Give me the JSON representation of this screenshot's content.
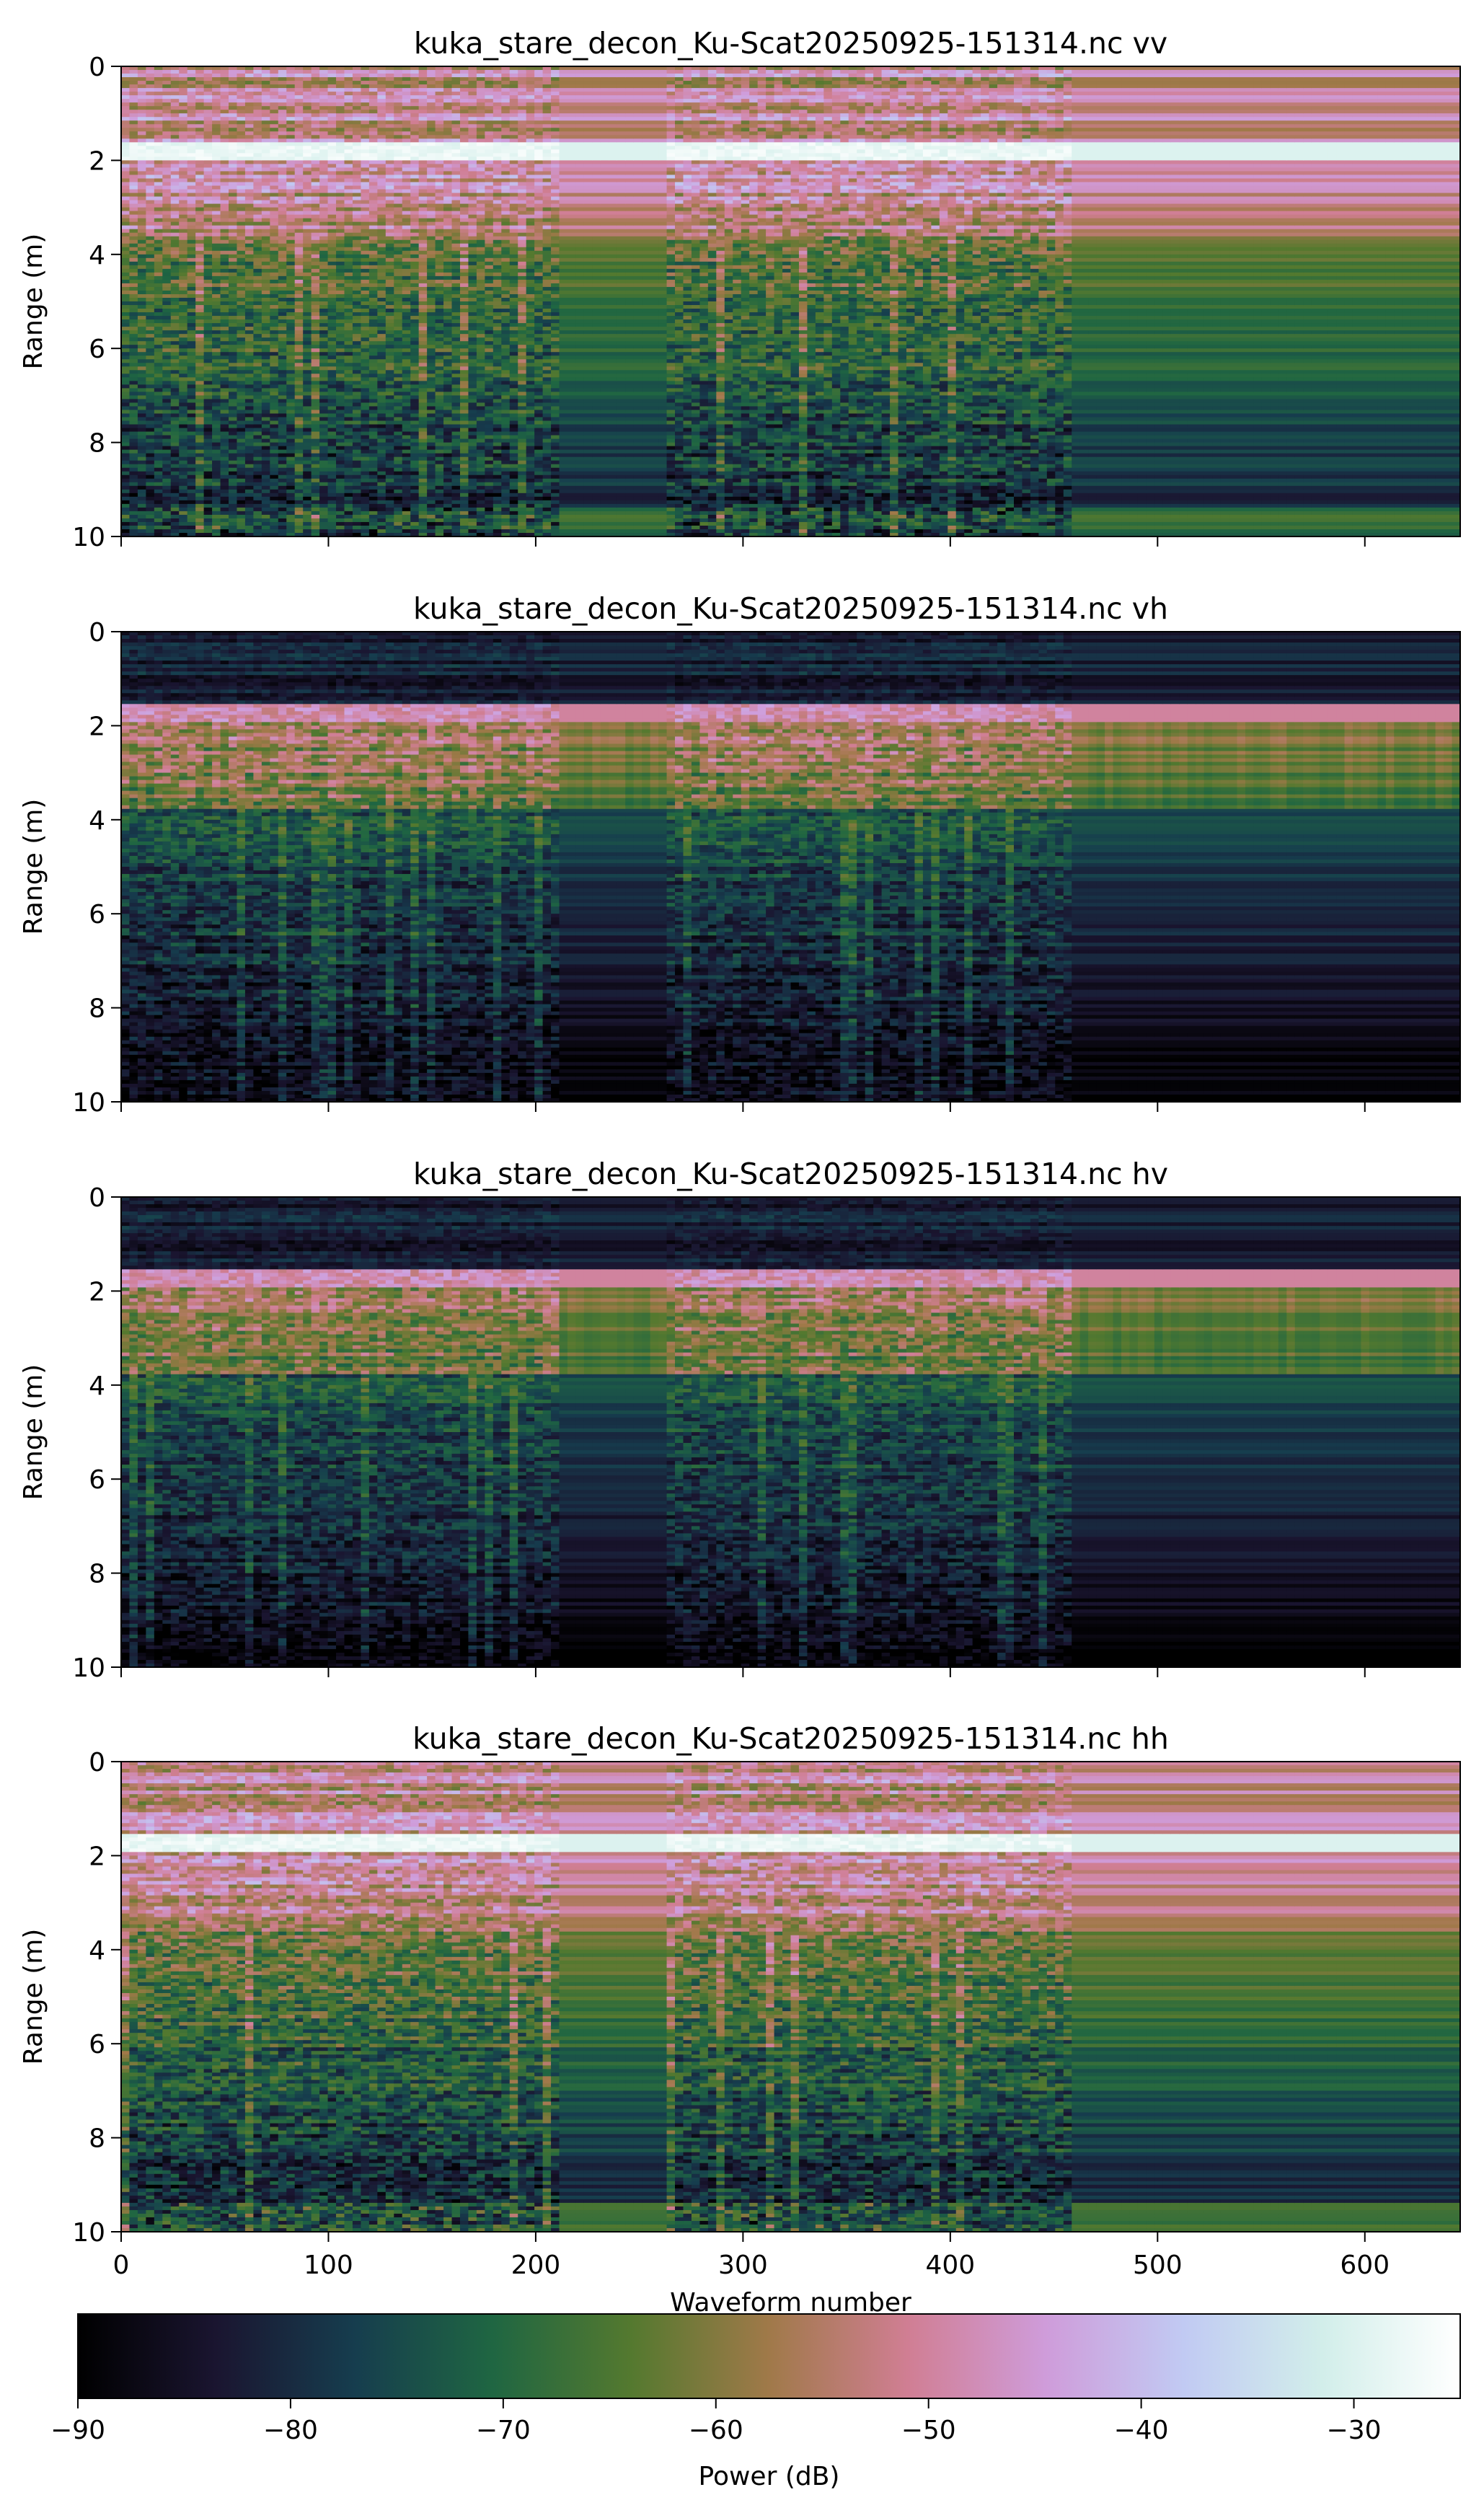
{
  "chart_data": [
    {
      "type": "heatmap",
      "title": "kuka_stare_decon_Ku-Scat20250925-151314.nc vv",
      "ylabel": "Range (m)",
      "xlabel": "",
      "xlim": [
        0,
        646
      ],
      "ylim": [
        10,
        0
      ],
      "y_ticks": [
        0,
        2,
        4,
        6,
        8,
        10
      ],
      "x_ticks": [
        0,
        100,
        200,
        300,
        400,
        500,
        600
      ],
      "x_tick_labels_shown": false,
      "surface_range_m": 1.7,
      "gaps": [
        [
          212,
          263
        ],
        [
          460,
          646
        ]
      ],
      "values_note": "",
      "colormap": "cubehelix"
    },
    {
      "type": "heatmap",
      "title": "kuka_stare_decon_Ku-Scat20250925-151314.nc vh",
      "ylabel": "Range (m)",
      "xlabel": "",
      "xlim": [
        0,
        646
      ],
      "ylim": [
        10,
        0
      ],
      "y_ticks": [
        0,
        2,
        4,
        6,
        8,
        10
      ],
      "x_ticks": [
        0,
        100,
        200,
        300,
        400,
        500,
        600
      ],
      "x_tick_labels_shown": false,
      "surface_range_m": 1.6,
      "gaps": [
        [
          212,
          263
        ],
        [
          460,
          646
        ]
      ],
      "colormap": "cubehelix"
    },
    {
      "type": "heatmap",
      "title": "kuka_stare_decon_Ku-Scat20250925-151314.nc hv",
      "ylabel": "Range (m)",
      "xlabel": "",
      "xlim": [
        0,
        646
      ],
      "ylim": [
        10,
        0
      ],
      "y_ticks": [
        0,
        2,
        4,
        6,
        8,
        10
      ],
      "x_ticks": [
        0,
        100,
        200,
        300,
        400,
        500,
        600
      ],
      "x_tick_labels_shown": false,
      "surface_range_m": 1.6,
      "gaps": [
        [
          212,
          263
        ],
        [
          460,
          646
        ]
      ],
      "colormap": "cubehelix"
    },
    {
      "type": "heatmap",
      "title": "kuka_stare_decon_Ku-Scat20250925-151314.nc hh",
      "ylabel": "Range (m)",
      "xlabel": "Waveform number",
      "xlim": [
        0,
        646
      ],
      "ylim": [
        10,
        0
      ],
      "y_ticks": [
        0,
        2,
        4,
        6,
        8,
        10
      ],
      "x_ticks": [
        0,
        100,
        200,
        300,
        400,
        500,
        600
      ],
      "x_tick_labels_shown": true,
      "surface_range_m": 1.6,
      "gaps": [
        [
          212,
          263
        ],
        [
          460,
          646
        ]
      ],
      "colormap": "cubehelix"
    }
  ],
  "colorbar": {
    "label": "Power (dB)",
    "range": [
      -90,
      -25
    ],
    "ticks": [
      -90,
      -80,
      -70,
      -60,
      -50,
      -40,
      -30
    ],
    "tick_labels": [
      "−90",
      "−80",
      "−70",
      "−60",
      "−50",
      "−40",
      "−30"
    ],
    "colors": [
      "#000000",
      "#1a1530",
      "#163d4e",
      "#1f6642",
      "#54792f",
      "#a07949",
      "#d07e93",
      "#cf9cda",
      "#c1caf3",
      "#d2eeea",
      "#ffffff"
    ]
  }
}
